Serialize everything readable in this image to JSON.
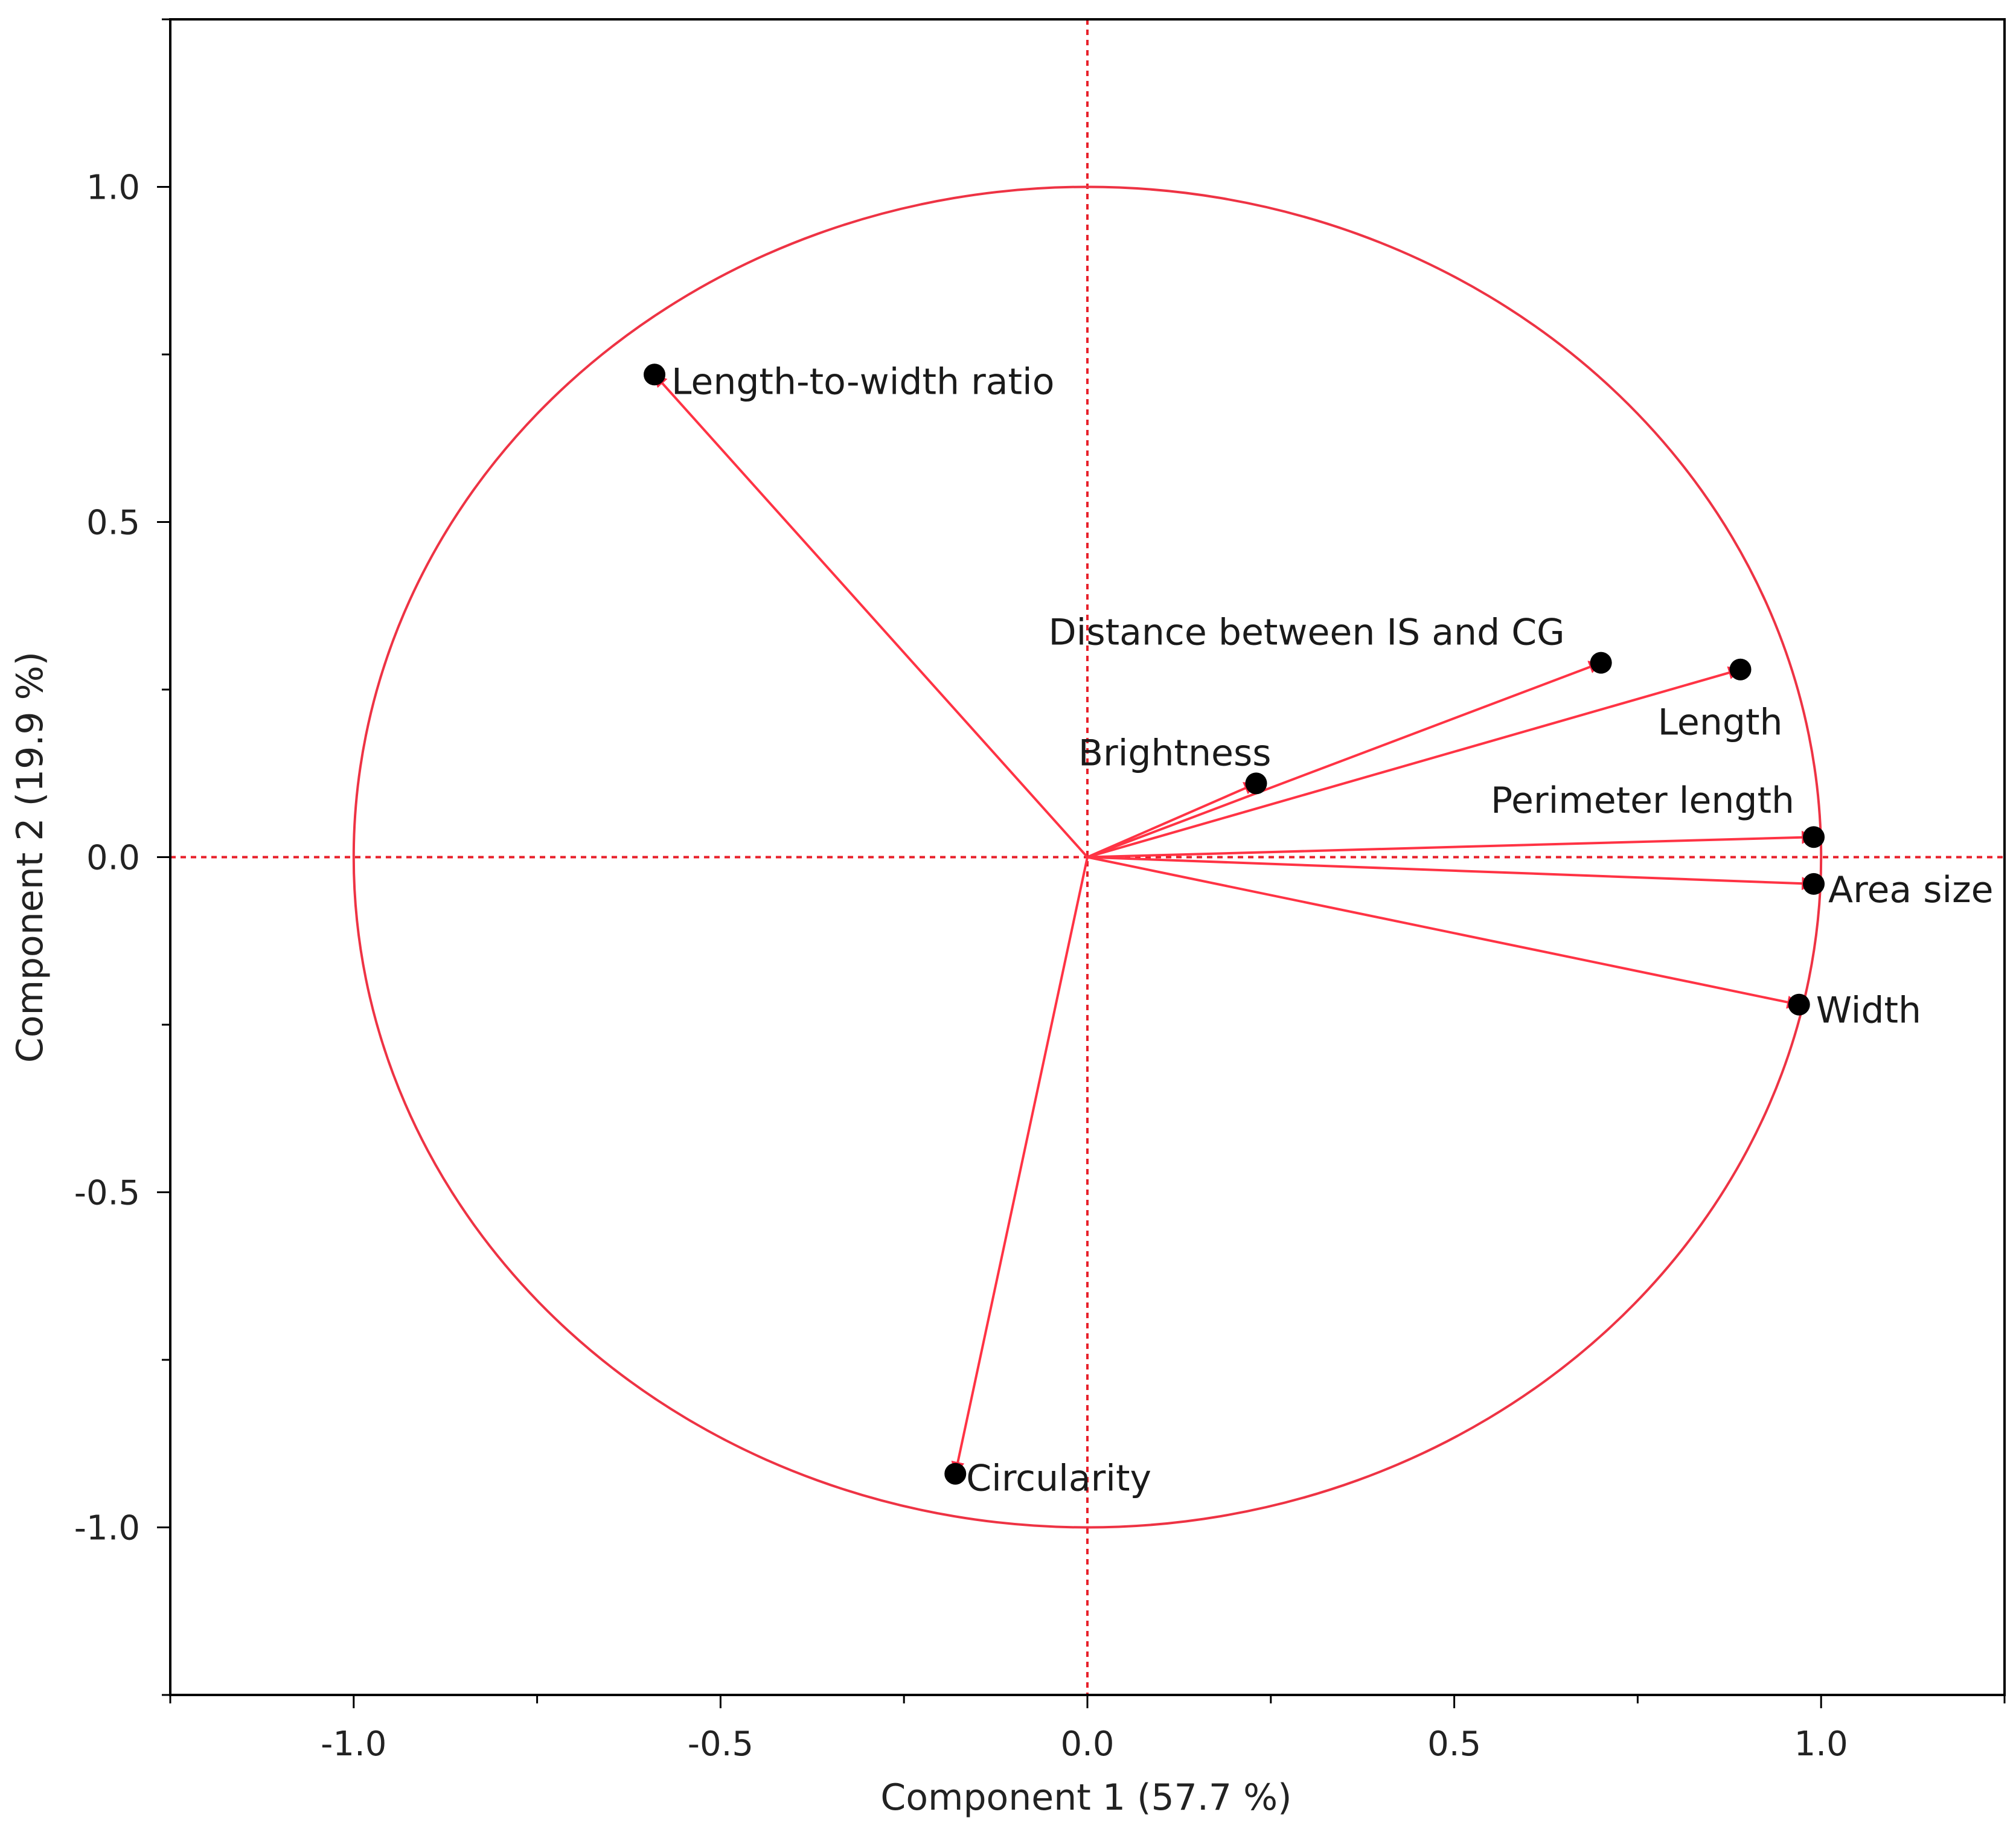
{
  "chart_data": {
    "type": "scatter",
    "subtype": "pca-loading-plot",
    "title": "",
    "xlabel": "Component 1  (57.7 %)",
    "ylabel": "Component 2  (19.9 %)",
    "xlim": [
      -1.25,
      1.25
    ],
    "ylim": [
      -1.25,
      1.25
    ],
    "xticks": [
      "-1.0",
      "-0.5",
      "0.0",
      "0.5",
      "1.0"
    ],
    "yticks": [
      "1.0",
      "0.5",
      "0.0",
      "-0.5",
      "-1.0"
    ],
    "unit_circle": true,
    "grid": false,
    "reference_lines": "dotted lines at x=0 and y=0",
    "colors": {
      "vector": "#ff3344",
      "circle": "#ee3344",
      "point": "#000000",
      "reference": "#e8202a"
    },
    "points": [
      {
        "name": "Length-to-width ratio",
        "x": -0.59,
        "y": 0.72
      },
      {
        "name": "Distance between IS and CG",
        "x": 0.7,
        "y": 0.29
      },
      {
        "name": "Length",
        "x": 0.89,
        "y": 0.28
      },
      {
        "name": "Brightness",
        "x": 0.23,
        "y": 0.11
      },
      {
        "name": "Perimeter length",
        "x": 0.99,
        "y": 0.03
      },
      {
        "name": "Area size",
        "x": 0.99,
        "y": -0.04
      },
      {
        "name": "Width",
        "x": 0.97,
        "y": -0.22
      },
      {
        "name": "Circularity",
        "x": -0.18,
        "y": -0.92
      }
    ]
  }
}
